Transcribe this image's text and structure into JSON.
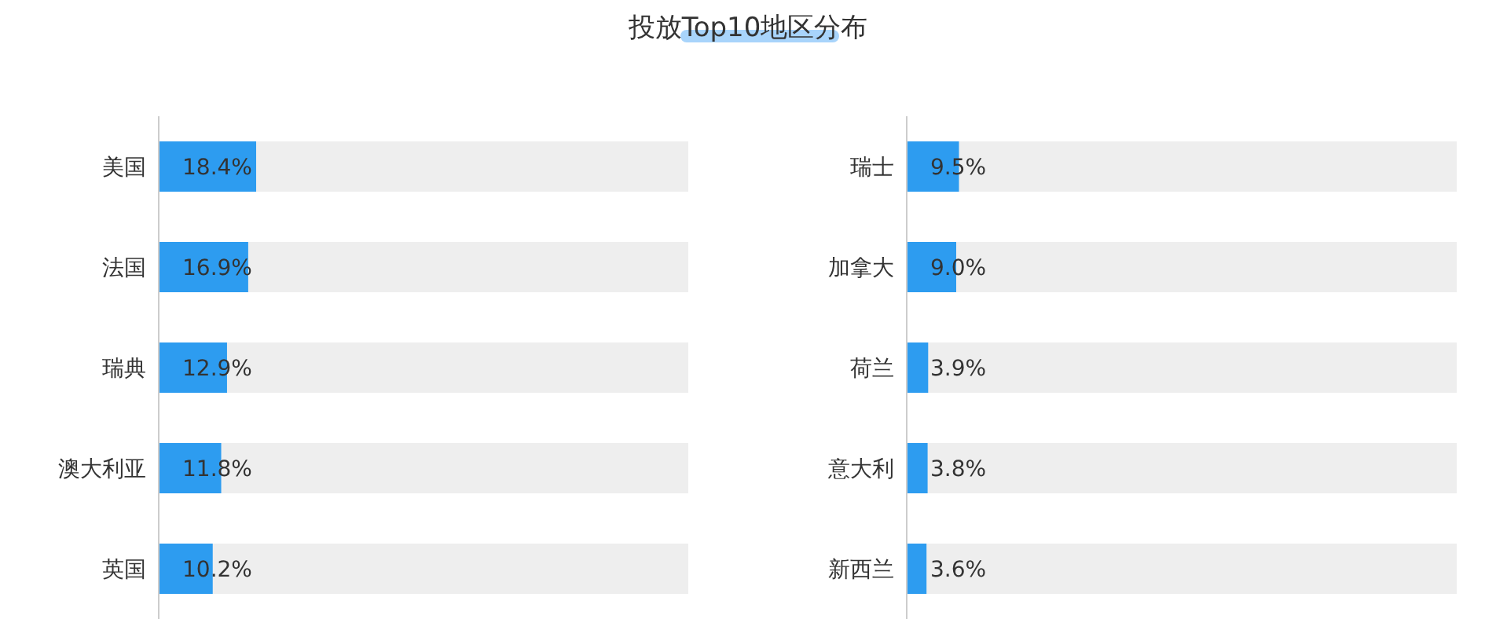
{
  "chart_data": [
    {
      "type": "bar",
      "title": "投放Top10地区分布",
      "orientation": "horizontal",
      "categories": [
        "美国",
        "法国",
        "瑞典",
        "澳大利亚",
        "英国"
      ],
      "values": [
        18.4,
        16.9,
        12.9,
        11.8,
        10.2
      ],
      "value_labels": [
        "18.4%",
        "16.9%",
        "12.9%",
        "11.8%",
        "10.2%"
      ],
      "color": "#2d9cf0",
      "xlim": [
        0,
        100
      ],
      "tick_labels": "y"
    },
    {
      "type": "bar",
      "orientation": "horizontal",
      "categories": [
        "瑞士",
        "加拿大",
        "荷兰",
        "意大利",
        "新西兰"
      ],
      "values": [
        9.5,
        9.0,
        3.9,
        3.8,
        3.6
      ],
      "value_labels": [
        "9.5%",
        "9.0%",
        "3.9%",
        "3.8%",
        "3.6%"
      ],
      "color": "#2d9cf0",
      "xlim": [
        0,
        100
      ],
      "tick_labels": "y"
    }
  ]
}
